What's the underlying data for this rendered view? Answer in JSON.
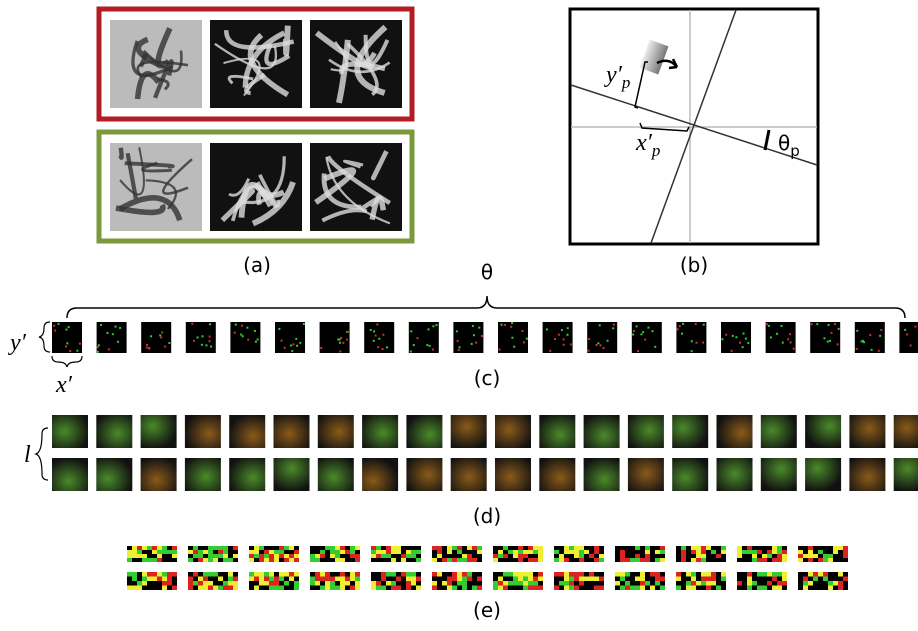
{
  "panels": {
    "a": {
      "label": "(a)"
    },
    "b": {
      "label": "(b)",
      "y_label": {
        "main": "y′",
        "sub": "p"
      },
      "x_label": {
        "main": "x′",
        "sub": "p"
      },
      "angle_label": {
        "main": "θ",
        "sub": "p"
      }
    },
    "c": {
      "label": "(c)",
      "theta": "θ",
      "y_axis": "y′",
      "x_axis": "x′"
    },
    "d": {
      "label": "(d)",
      "l_axis": "l"
    },
    "e": {
      "label": "(e)"
    }
  }
}
